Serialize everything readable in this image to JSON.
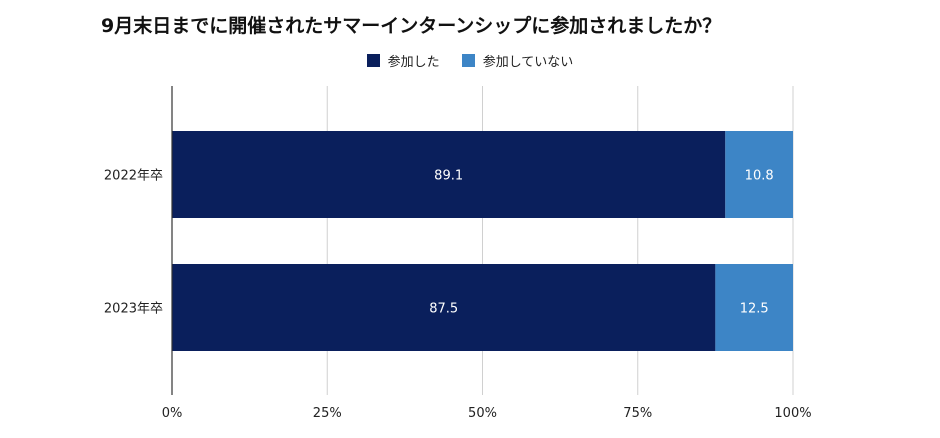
{
  "chart_data": {
    "type": "bar",
    "orientation": "horizontal",
    "stacked": true,
    "title": "9月末日までに開催されたサマーインターンシップに参加されましたか？",
    "categories": [
      "2022年卒",
      "2023年卒"
    ],
    "series": [
      {
        "name": "参加した",
        "values": [
          89.1,
          87.5
        ],
        "color": "#0a1f5c"
      },
      {
        "name": "参加していない",
        "values": [
          10.8,
          12.5
        ],
        "color": "#3d85c6"
      }
    ],
    "xlim": [
      0,
      100
    ],
    "xticks": [
      "0%",
      "25%",
      "50%",
      "75%",
      "100%"
    ],
    "xtick_values": [
      0,
      25,
      50,
      75,
      100
    ],
    "grid": true,
    "legend_position": "top-center",
    "data_label_color": "#ffffff"
  }
}
